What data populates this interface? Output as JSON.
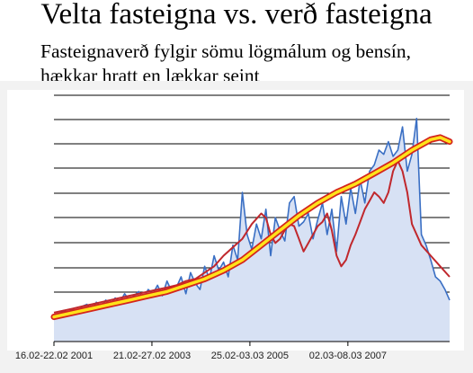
{
  "title": "Velta fasteigna vs. verð fasteigna",
  "subtitle_line1": "Fasteignaverð fylgir sömu lögmálum og bensín,",
  "subtitle_line2": "hækkar hratt en lækkar seint",
  "chart_data": {
    "type": "line",
    "title": "Velta fasteigna vs. verð fasteigna",
    "subtitle": "Fasteignaverð fylgir sömu lögmálum og bensín, hækkar hratt en lækkar seint",
    "xlabel": "",
    "ylabel": "",
    "x_tick_labels": [
      "16.02-22.02 2001",
      "21.02-27.02 2003",
      "25.02-03.03 2005",
      "02.03-08.03 2007"
    ],
    "x_tick_positions": [
      0,
      104,
      208,
      312
    ],
    "xlim": [
      0,
      420
    ],
    "ylim": [
      0,
      100
    ],
    "grid": true,
    "legend": "none",
    "series": [
      {
        "style": "blue-area",
        "color": "#3a6fc4",
        "fill": "#d7e1f4",
        "x": [
          0,
          5,
          10,
          15,
          20,
          25,
          30,
          35,
          40,
          45,
          50,
          55,
          60,
          65,
          70,
          75,
          80,
          85,
          90,
          95,
          100,
          105,
          110,
          115,
          120,
          125,
          130,
          135,
          140,
          145,
          150,
          155,
          160,
          165,
          170,
          175,
          180,
          185,
          190,
          195,
          200,
          205,
          210,
          215,
          220,
          225,
          230,
          235,
          240,
          245,
          250,
          255,
          260,
          265,
          270,
          275,
          280,
          285,
          290,
          295,
          300,
          305,
          310,
          315,
          320,
          325,
          330,
          335,
          340,
          345,
          350,
          355,
          360,
          365,
          370,
          375,
          380,
          385,
          390,
          395,
          400,
          405,
          410,
          415,
          420
        ],
        "values": [
          1,
          2,
          4,
          3,
          5,
          3,
          6,
          7,
          4,
          8,
          6,
          9,
          7,
          10,
          8,
          12,
          9,
          11,
          13,
          10,
          14,
          12,
          16,
          11,
          18,
          13,
          15,
          20,
          12,
          22,
          17,
          14,
          25,
          19,
          30,
          23,
          27,
          20,
          35,
          28,
          60,
          40,
          33,
          45,
          38,
          52,
          30,
          48,
          42,
          37,
          55,
          58,
          44,
          46,
          50,
          38,
          47,
          55,
          40,
          52,
          32,
          58,
          45,
          62,
          50,
          66,
          55,
          70,
          73,
          80,
          78,
          84,
          77,
          80,
          91,
          70,
          78,
          95,
          40,
          35,
          28,
          20,
          18,
          14,
          9
        ]
      },
      {
        "style": "red-line",
        "color": "#c0282d",
        "x": [
          0,
          10,
          20,
          30,
          40,
          50,
          60,
          70,
          80,
          90,
          100,
          110,
          120,
          130,
          140,
          150,
          160,
          170,
          180,
          190,
          200,
          210,
          220,
          225,
          230,
          235,
          240,
          245,
          250,
          255,
          260,
          265,
          270,
          275,
          280,
          285,
          290,
          295,
          300,
          305,
          310,
          315,
          320,
          325,
          330,
          335,
          340,
          345,
          350,
          355,
          360,
          365,
          370,
          375,
          380,
          390,
          400,
          410,
          420
        ],
        "values": [
          3,
          4,
          5,
          6,
          7,
          8,
          9,
          10,
          11,
          12,
          13,
          14,
          15,
          16,
          18,
          19,
          22,
          25,
          30,
          34,
          38,
          45,
          50,
          48,
          40,
          36,
          38,
          42,
          45,
          44,
          38,
          32,
          36,
          40,
          44,
          46,
          50,
          42,
          30,
          25,
          28,
          35,
          40,
          46,
          52,
          56,
          60,
          58,
          55,
          60,
          70,
          75,
          70,
          60,
          45,
          35,
          30,
          25,
          20
        ]
      },
      {
        "style": "yellow-red-highlight",
        "color": "#ffe21a",
        "outline": "#d4251c",
        "x": [
          0,
          20,
          40,
          60,
          80,
          100,
          120,
          140,
          160,
          180,
          200,
          220,
          240,
          260,
          280,
          300,
          320,
          340,
          360,
          380,
          400,
          410,
          420
        ],
        "values": [
          1,
          3,
          5,
          7,
          9,
          11,
          13,
          16,
          19,
          23,
          28,
          35,
          42,
          49,
          55,
          60,
          64,
          69,
          74,
          80,
          85,
          86,
          84
        ]
      }
    ]
  }
}
